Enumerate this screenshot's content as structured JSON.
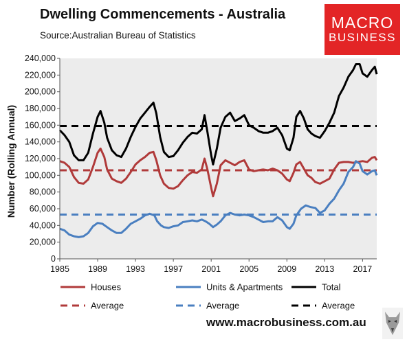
{
  "title": "Dwelling Commencements - Australia",
  "source": "Source:Australian Bureau of Statistics",
  "logo": {
    "line1": "MACRO",
    "line2": "BUSINESS",
    "color": "#e32526"
  },
  "website": "www.macrobusiness.com.au",
  "chart_data": {
    "type": "line",
    "ylabel": "Number (Rolling Annual)",
    "xlim": [
      1985,
      2018.5
    ],
    "ylim": [
      0,
      240000
    ],
    "x_ticks": [
      "1985",
      "1989",
      "1993",
      "1997",
      "2001",
      "2005",
      "2009",
      "2013",
      "2017"
    ],
    "y_ticks": [
      "0",
      "20,000",
      "40,000",
      "60,000",
      "80,000",
      "100,000",
      "120,000",
      "140,000",
      "160,000",
      "180,000",
      "200,000",
      "220,000",
      "240,000"
    ],
    "grid": false,
    "legend_position": "bottom",
    "plot_background": "#ececec",
    "series": [
      {
        "name": "Houses",
        "color": "#b03a3a",
        "points": [
          [
            1985,
            117000
          ],
          [
            1985.5,
            115000
          ],
          [
            1986,
            110000
          ],
          [
            1986.5,
            98000
          ],
          [
            1987,
            91000
          ],
          [
            1987.5,
            90000
          ],
          [
            1988,
            95000
          ],
          [
            1988.5,
            110000
          ],
          [
            1989,
            127000
          ],
          [
            1989.3,
            132000
          ],
          [
            1989.7,
            122000
          ],
          [
            1990,
            107000
          ],
          [
            1990.5,
            96000
          ],
          [
            1991,
            93000
          ],
          [
            1991.5,
            91000
          ],
          [
            1992,
            96000
          ],
          [
            1992.5,
            104000
          ],
          [
            1993,
            113000
          ],
          [
            1993.5,
            118000
          ],
          [
            1994,
            122000
          ],
          [
            1994.5,
            127000
          ],
          [
            1994.9,
            128000
          ],
          [
            1995.2,
            118000
          ],
          [
            1995.6,
            100000
          ],
          [
            1996,
            90000
          ],
          [
            1996.5,
            85000
          ],
          [
            1997,
            84000
          ],
          [
            1997.5,
            87000
          ],
          [
            1998,
            94000
          ],
          [
            1998.5,
            100000
          ],
          [
            1999,
            104000
          ],
          [
            1999.5,
            103000
          ],
          [
            2000,
            107000
          ],
          [
            2000.3,
            120000
          ],
          [
            2000.6,
            107000
          ],
          [
            2001,
            85000
          ],
          [
            2001.2,
            75000
          ],
          [
            2001.6,
            90000
          ],
          [
            2002,
            112000
          ],
          [
            2002.5,
            118000
          ],
          [
            2003,
            115000
          ],
          [
            2003.5,
            112000
          ],
          [
            2004,
            116000
          ],
          [
            2004.5,
            118000
          ],
          [
            2005,
            107000
          ],
          [
            2005.5,
            105000
          ],
          [
            2006,
            106000
          ],
          [
            2006.5,
            107000
          ],
          [
            2007,
            106000
          ],
          [
            2007.5,
            108000
          ],
          [
            2008,
            106000
          ],
          [
            2008.5,
            102000
          ],
          [
            2009,
            95000
          ],
          [
            2009.3,
            93000
          ],
          [
            2009.7,
            103000
          ],
          [
            2010,
            113000
          ],
          [
            2010.4,
            116000
          ],
          [
            2010.8,
            108000
          ],
          [
            2011.2,
            100000
          ],
          [
            2011.6,
            97000
          ],
          [
            2012,
            92000
          ],
          [
            2012.5,
            90000
          ],
          [
            2013,
            93000
          ],
          [
            2013.5,
            96000
          ],
          [
            2014,
            107000
          ],
          [
            2014.5,
            115000
          ],
          [
            2015,
            116000
          ],
          [
            2015.5,
            116000
          ],
          [
            2016,
            115000
          ],
          [
            2016.5,
            116000
          ],
          [
            2017,
            117000
          ],
          [
            2017.5,
            116000
          ],
          [
            2018,
            121000
          ],
          [
            2018.3,
            122000
          ],
          [
            2018.5,
            118000
          ]
        ]
      },
      {
        "name": "Units & Apartments",
        "color": "#4a7fc0",
        "points": [
          [
            1985,
            36000
          ],
          [
            1985.5,
            34000
          ],
          [
            1986,
            29000
          ],
          [
            1986.5,
            27000
          ],
          [
            1987,
            26000
          ],
          [
            1987.5,
            27000
          ],
          [
            1988,
            31000
          ],
          [
            1988.5,
            39000
          ],
          [
            1989,
            43000
          ],
          [
            1989.5,
            42000
          ],
          [
            1990,
            38000
          ],
          [
            1990.5,
            34000
          ],
          [
            1991,
            31000
          ],
          [
            1991.5,
            31000
          ],
          [
            1992,
            36000
          ],
          [
            1992.5,
            42000
          ],
          [
            1993,
            45000
          ],
          [
            1993.5,
            48000
          ],
          [
            1994,
            52000
          ],
          [
            1994.5,
            54000
          ],
          [
            1995,
            52000
          ],
          [
            1995.3,
            45000
          ],
          [
            1995.7,
            40000
          ],
          [
            1996,
            38000
          ],
          [
            1996.5,
            37000
          ],
          [
            1997,
            39000
          ],
          [
            1997.5,
            40000
          ],
          [
            1998,
            44000
          ],
          [
            1998.5,
            45000
          ],
          [
            1999,
            46000
          ],
          [
            1999.5,
            45000
          ],
          [
            2000,
            47000
          ],
          [
            2000.4,
            45000
          ],
          [
            2000.8,
            42000
          ],
          [
            2001.2,
            38000
          ],
          [
            2001.6,
            41000
          ],
          [
            2002,
            45000
          ],
          [
            2002.5,
            52000
          ],
          [
            2003,
            55000
          ],
          [
            2003.5,
            53000
          ],
          [
            2004,
            52000
          ],
          [
            2004.5,
            53000
          ],
          [
            2005,
            52000
          ],
          [
            2005.5,
            50000
          ],
          [
            2006,
            47000
          ],
          [
            2006.5,
            44000
          ],
          [
            2007,
            45000
          ],
          [
            2007.5,
            45000
          ],
          [
            2008,
            50000
          ],
          [
            2008.5,
            46000
          ],
          [
            2009,
            38000
          ],
          [
            2009.3,
            36000
          ],
          [
            2009.7,
            42000
          ],
          [
            2010,
            52000
          ],
          [
            2010.5,
            60000
          ],
          [
            2011,
            64000
          ],
          [
            2011.5,
            62000
          ],
          [
            2012,
            61000
          ],
          [
            2012.5,
            55000
          ],
          [
            2013,
            58000
          ],
          [
            2013.5,
            66000
          ],
          [
            2014,
            72000
          ],
          [
            2014.5,
            82000
          ],
          [
            2015,
            90000
          ],
          [
            2015.5,
            104000
          ],
          [
            2016,
            110000
          ],
          [
            2016.3,
            117000
          ],
          [
            2016.7,
            114000
          ],
          [
            2017,
            105000
          ],
          [
            2017.5,
            101000
          ],
          [
            2018,
            105000
          ],
          [
            2018.3,
            106000
          ],
          [
            2018.5,
            100000
          ]
        ]
      },
      {
        "name": "Total",
        "color": "#000000",
        "points": [
          [
            1985,
            154000
          ],
          [
            1985.5,
            148000
          ],
          [
            1986,
            140000
          ],
          [
            1986.5,
            124000
          ],
          [
            1987,
            118000
          ],
          [
            1987.5,
            118000
          ],
          [
            1988,
            127000
          ],
          [
            1988.5,
            150000
          ],
          [
            1989,
            170000
          ],
          [
            1989.3,
            177000
          ],
          [
            1989.7,
            163000
          ],
          [
            1990,
            145000
          ],
          [
            1990.5,
            130000
          ],
          [
            1991,
            124000
          ],
          [
            1991.5,
            122000
          ],
          [
            1992,
            132000
          ],
          [
            1992.5,
            146000
          ],
          [
            1993,
            158000
          ],
          [
            1993.5,
            168000
          ],
          [
            1994,
            175000
          ],
          [
            1994.5,
            182000
          ],
          [
            1994.9,
            187000
          ],
          [
            1995.2,
            174000
          ],
          [
            1995.6,
            146000
          ],
          [
            1996,
            128000
          ],
          [
            1996.5,
            122000
          ],
          [
            1997,
            123000
          ],
          [
            1997.5,
            130000
          ],
          [
            1998,
            139000
          ],
          [
            1998.5,
            146000
          ],
          [
            1999,
            151000
          ],
          [
            1999.5,
            150000
          ],
          [
            2000,
            155000
          ],
          [
            2000.3,
            172000
          ],
          [
            2000.6,
            152000
          ],
          [
            2001,
            124000
          ],
          [
            2001.2,
            113000
          ],
          [
            2001.6,
            132000
          ],
          [
            2002,
            157000
          ],
          [
            2002.5,
            170000
          ],
          [
            2003,
            175000
          ],
          [
            2003.5,
            165000
          ],
          [
            2004,
            168000
          ],
          [
            2004.5,
            172000
          ],
          [
            2005,
            160000
          ],
          [
            2005.5,
            157000
          ],
          [
            2006,
            153000
          ],
          [
            2006.5,
            151000
          ],
          [
            2007,
            151000
          ],
          [
            2007.5,
            153000
          ],
          [
            2008,
            157000
          ],
          [
            2008.5,
            148000
          ],
          [
            2009,
            132000
          ],
          [
            2009.3,
            130000
          ],
          [
            2009.7,
            145000
          ],
          [
            2010,
            170000
          ],
          [
            2010.4,
            177000
          ],
          [
            2010.8,
            168000
          ],
          [
            2011.2,
            155000
          ],
          [
            2011.6,
            150000
          ],
          [
            2012,
            147000
          ],
          [
            2012.5,
            145000
          ],
          [
            2013,
            153000
          ],
          [
            2013.5,
            163000
          ],
          [
            2014,
            175000
          ],
          [
            2014.5,
            195000
          ],
          [
            2015,
            205000
          ],
          [
            2015.5,
            218000
          ],
          [
            2016,
            226000
          ],
          [
            2016.3,
            233000
          ],
          [
            2016.7,
            233000
          ],
          [
            2017,
            222000
          ],
          [
            2017.5,
            218000
          ],
          [
            2018,
            226000
          ],
          [
            2018.3,
            230000
          ],
          [
            2018.5,
            221000
          ]
        ]
      }
    ],
    "averages": [
      {
        "name": "Average",
        "color": "#b03a3a",
        "value": 106000
      },
      {
        "name": "Average",
        "color": "#4a7fc0",
        "value": 53000
      },
      {
        "name": "Average",
        "color": "#000000",
        "value": 159000
      }
    ]
  }
}
